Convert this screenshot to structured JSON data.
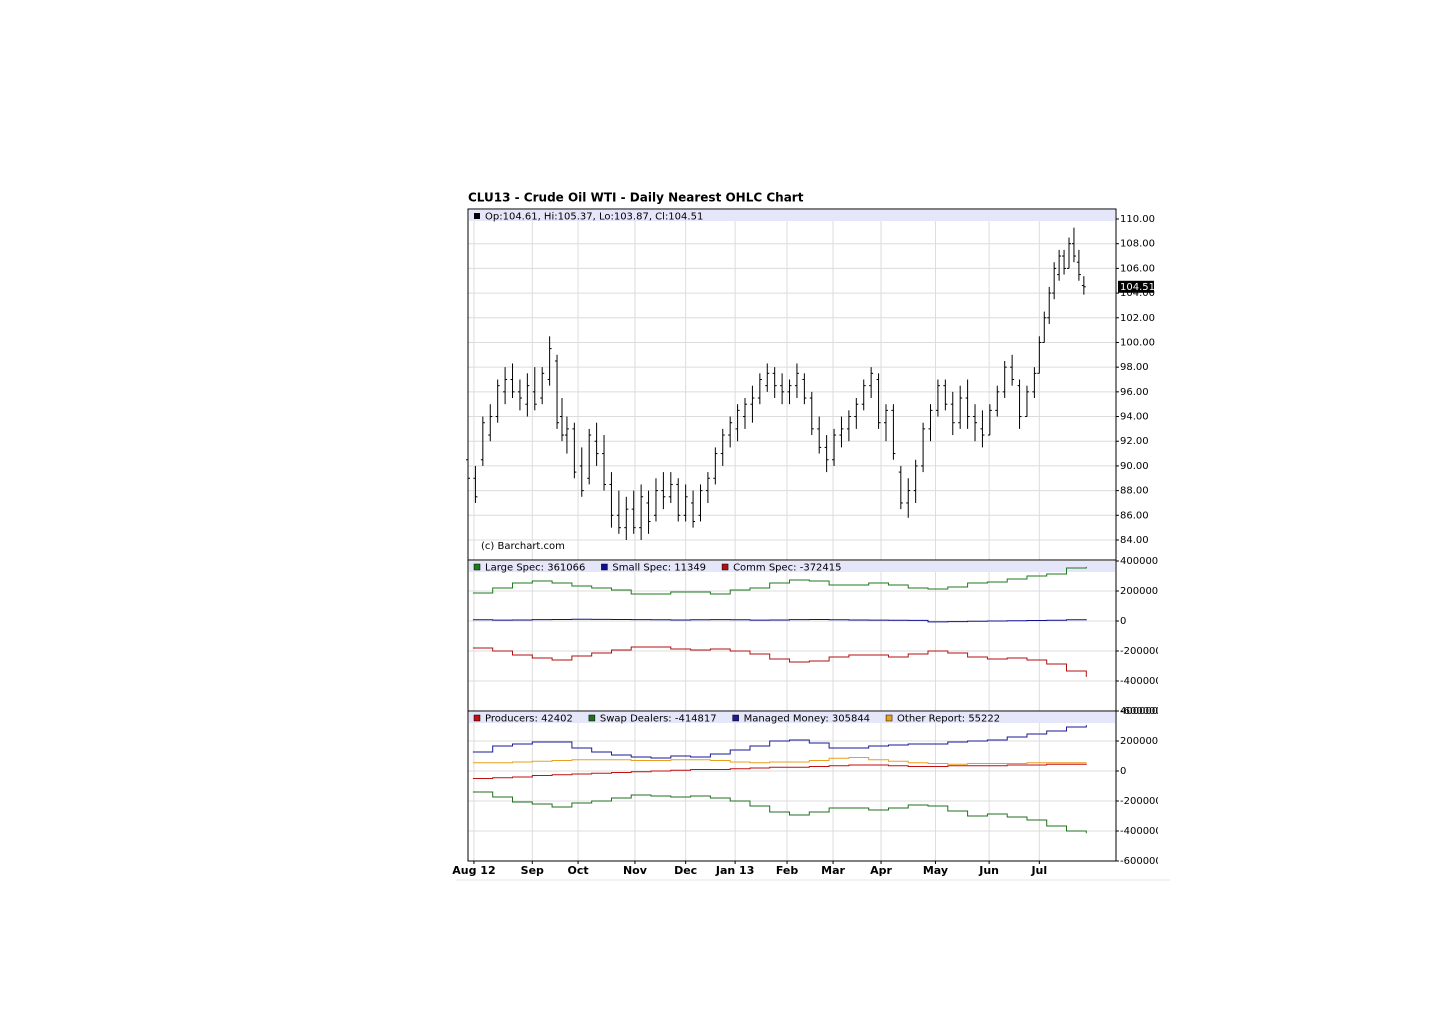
{
  "title": "CLU13 - Crude Oil WTI - Daily Nearest OHLC Chart",
  "chart_data": [
    {
      "type": "ohlc",
      "header": "Op:104.61, Hi:105.37, Lo:103.87, Cl:104.51",
      "watermark": "(c) Barchart.com",
      "color": "#000000",
      "last_value": 104.51,
      "x": [
        0,
        3,
        6,
        9,
        12,
        15,
        18,
        21,
        24,
        27,
        30,
        33,
        36,
        38,
        40,
        43,
        46,
        49,
        52,
        55,
        58,
        61,
        64,
        67,
        70,
        73,
        76,
        79,
        82,
        85,
        88,
        91,
        94,
        97,
        100,
        103,
        106,
        109,
        112,
        115,
        118,
        121,
        124,
        127,
        130,
        133,
        136,
        139,
        142,
        145,
        148,
        151,
        154,
        157,
        160,
        163,
        166,
        169,
        172,
        175,
        178,
        181,
        184,
        187,
        190,
        193,
        196,
        199,
        202,
        205,
        208,
        211,
        214,
        217,
        220,
        223,
        226,
        229,
        231,
        233,
        235,
        237,
        239,
        241,
        243,
        245,
        247,
        249
      ],
      "high": [
        91,
        90,
        94,
        95,
        97,
        98,
        98.3,
        97,
        97.5,
        98,
        98,
        100.5,
        99,
        95.5,
        94,
        93.5,
        91.5,
        93,
        93.5,
        92.5,
        89.5,
        88,
        87.5,
        88,
        88.5,
        88,
        89,
        89.5,
        89.5,
        89,
        88.5,
        88,
        88.5,
        89.5,
        91.5,
        93,
        94,
        95,
        95.5,
        96.5,
        97.5,
        98.3,
        98,
        97.5,
        97,
        98.3,
        97.5,
        96,
        94,
        92.5,
        93,
        94,
        94.5,
        95.5,
        97,
        98,
        97.5,
        95,
        95,
        90,
        89,
        90.5,
        93.5,
        95,
        97,
        97,
        96,
        96.5,
        97,
        95,
        94.5,
        95,
        96.5,
        98.5,
        99,
        97,
        96.5,
        98,
        100.5,
        102.5,
        104.5,
        106.5,
        107.5,
        107.5,
        108.5,
        109.3,
        107.5,
        105.37
      ],
      "low": [
        88,
        87,
        90,
        92,
        93.5,
        95,
        95.5,
        94.5,
        94,
        94.5,
        95,
        96.5,
        93,
        92,
        91,
        89,
        87.5,
        88.5,
        90,
        88,
        85,
        84.5,
        84,
        84.5,
        84,
        84.5,
        85.5,
        86.5,
        87,
        85.5,
        85.5,
        85,
        85.5,
        87,
        88.5,
        90,
        91.5,
        92,
        93,
        93.5,
        95,
        96,
        95.5,
        95,
        95,
        95.5,
        95,
        92.5,
        91,
        89.5,
        90,
        91.5,
        92,
        93,
        94.5,
        95.5,
        93,
        92,
        90.5,
        86.5,
        85.8,
        87,
        89.5,
        92,
        94,
        94.5,
        92.5,
        93,
        93,
        92,
        91.5,
        92.5,
        94,
        95.5,
        96.5,
        93,
        94,
        95.5,
        97.5,
        100,
        101.5,
        103.5,
        105,
        105.5,
        106,
        106.5,
        105,
        103.87
      ],
      "open": [
        90.5,
        89,
        90.5,
        92.5,
        94,
        96,
        97,
        96,
        95,
        96,
        95.5,
        97,
        98.5,
        94,
        92.5,
        93,
        90,
        89,
        92,
        91,
        88.5,
        86,
        85,
        86.5,
        85,
        87,
        86,
        88,
        87.5,
        88.5,
        86,
        87,
        86,
        88,
        89,
        91,
        92.5,
        93,
        94,
        95,
        95.5,
        96.5,
        97.5,
        96.5,
        96,
        96.5,
        97,
        95.5,
        93,
        91.5,
        90.5,
        92.5,
        93,
        94,
        95,
        96.5,
        97,
        93.5,
        94.5,
        89.5,
        87,
        88,
        90,
        93,
        94.5,
        96.5,
        95,
        93.5,
        95.5,
        94,
        93,
        92.5,
        94.5,
        96,
        98,
        96.5,
        94,
        96,
        97.5,
        100,
        102,
        104,
        105.5,
        107,
        106,
        108,
        106.5,
        104.61
      ],
      "close": [
        89,
        87.5,
        93.5,
        94,
        96.5,
        97,
        96,
        95.5,
        96.5,
        95,
        97.5,
        99.5,
        93.5,
        92.5,
        93,
        89.5,
        88,
        92.5,
        91,
        88.5,
        86,
        85,
        86.5,
        85,
        87.5,
        85.5,
        88,
        87.5,
        88.5,
        86,
        87.5,
        85.5,
        88,
        89,
        91,
        92.5,
        93.5,
        94.5,
        95,
        95.5,
        97,
        97.5,
        96.5,
        96,
        96.5,
        97.5,
        95.5,
        93,
        91.5,
        90.5,
        92.5,
        93,
        94,
        95,
        96.5,
        97.5,
        93.5,
        94.5,
        91,
        87,
        88,
        90,
        93,
        94.5,
        96.5,
        95,
        93.5,
        95.5,
        94,
        93.5,
        92.5,
        94.5,
        96,
        98,
        97,
        94,
        96,
        97.5,
        100,
        102,
        104,
        106,
        107,
        106,
        108,
        107,
        105.5,
        104.51
      ],
      "ylim": [
        82.38,
        110.81
      ],
      "yticks": [
        {
          "value": 84,
          "label": "84.00"
        },
        {
          "value": 86,
          "label": "86.00"
        },
        {
          "value": 88,
          "label": "88.00"
        },
        {
          "value": 90,
          "label": "90.00"
        },
        {
          "value": 92,
          "label": "92.00"
        },
        {
          "value": 94,
          "label": "94.00"
        },
        {
          "value": 96,
          "label": "96.00"
        },
        {
          "value": 98,
          "label": "98.00"
        },
        {
          "value": 100,
          "label": "100.00"
        },
        {
          "value": 102,
          "label": "102.00"
        },
        {
          "value": 104,
          "label": "104.00"
        },
        {
          "value": 106,
          "label": "106.00"
        },
        {
          "value": 108,
          "label": "108.00"
        },
        {
          "value": 110,
          "label": "110.00"
        }
      ],
      "grid": true
    },
    {
      "type": "step",
      "x": [
        2,
        10,
        18,
        26,
        34,
        42,
        50,
        58,
        66,
        74,
        82,
        90,
        98,
        106,
        114,
        122,
        130,
        138,
        146,
        154,
        162,
        170,
        178,
        186,
        194,
        202,
        210,
        218,
        226,
        234,
        242,
        250
      ],
      "series": [
        {
          "name": "Large Spec: 361066",
          "color": "#1e7a1e",
          "values": [
            187000,
            220000,
            253000,
            267000,
            253000,
            233000,
            220000,
            207000,
            180000,
            180000,
            193000,
            193000,
            180000,
            207000,
            220000,
            253000,
            273000,
            267000,
            240000,
            240000,
            253000,
            240000,
            220000,
            213000,
            227000,
            253000,
            260000,
            280000,
            300000,
            313000,
            353000,
            361066
          ]
        },
        {
          "name": "Small Spec: 11349",
          "color": "#101090",
          "values": [
            8000,
            6000,
            7000,
            9000,
            10000,
            12000,
            11000,
            10000,
            9000,
            8000,
            7000,
            8000,
            9000,
            8000,
            6000,
            7000,
            9000,
            10000,
            8000,
            7000,
            6000,
            5000,
            4000,
            -6000,
            -4000,
            -2000,
            0,
            2000,
            3000,
            5000,
            8000,
            11349
          ]
        },
        {
          "name": "Comm Spec: -372415",
          "color": "#b01010",
          "values": [
            -180000,
            -200000,
            -227000,
            -247000,
            -260000,
            -233000,
            -213000,
            -193000,
            -173000,
            -173000,
            -187000,
            -193000,
            -187000,
            -200000,
            -220000,
            -253000,
            -273000,
            -267000,
            -240000,
            -227000,
            -227000,
            -240000,
            -220000,
            -200000,
            -213000,
            -240000,
            -253000,
            -247000,
            -260000,
            -287000,
            -333000,
            -372415
          ]
        }
      ],
      "ylim": [
        -600000,
        400000
      ],
      "yticks": [
        400000,
        200000,
        0,
        -200000,
        -400000,
        -600000
      ],
      "grid": true
    },
    {
      "type": "step",
      "x": [
        2,
        10,
        18,
        26,
        34,
        42,
        50,
        58,
        66,
        74,
        82,
        90,
        98,
        106,
        114,
        122,
        130,
        138,
        146,
        154,
        162,
        170,
        178,
        186,
        194,
        202,
        210,
        218,
        226,
        234,
        242,
        250
      ],
      "series": [
        {
          "name": "Producers: 42402",
          "color": "#c01010",
          "values": [
            -50000,
            -45000,
            -40000,
            -30000,
            -25000,
            -20000,
            -15000,
            -10000,
            -5000,
            0,
            5000,
            10000,
            10000,
            15000,
            20000,
            25000,
            25000,
            30000,
            35000,
            40000,
            40000,
            35000,
            30000,
            30000,
            35000,
            35000,
            35000,
            40000,
            40000,
            45000,
            45000,
            42402
          ]
        },
        {
          "name": "Swap Dealers: -414817",
          "color": "#207020",
          "values": [
            -140000,
            -173000,
            -207000,
            -220000,
            -240000,
            -213000,
            -200000,
            -180000,
            -160000,
            -167000,
            -173000,
            -167000,
            -180000,
            -200000,
            -233000,
            -273000,
            -293000,
            -273000,
            -247000,
            -247000,
            -260000,
            -247000,
            -227000,
            -233000,
            -267000,
            -300000,
            -287000,
            -307000,
            -327000,
            -367000,
            -400000,
            -414817
          ]
        },
        {
          "name": "Managed Money: 305844",
          "color": "#1a1a9a",
          "values": [
            127000,
            167000,
            180000,
            193000,
            193000,
            153000,
            127000,
            107000,
            93000,
            87000,
            100000,
            93000,
            113000,
            140000,
            167000,
            200000,
            207000,
            187000,
            153000,
            153000,
            167000,
            173000,
            180000,
            180000,
            193000,
            200000,
            207000,
            227000,
            247000,
            267000,
            293000,
            305844
          ]
        },
        {
          "name": "Other Report: 55222",
          "color": "#e8a020",
          "values": [
            55000,
            55000,
            60000,
            65000,
            70000,
            75000,
            75000,
            75000,
            70000,
            70000,
            75000,
            75000,
            70000,
            60000,
            55000,
            60000,
            60000,
            70000,
            85000,
            90000,
            75000,
            65000,
            55000,
            50000,
            45000,
            50000,
            50000,
            50000,
            55000,
            55000,
            55000,
            55222
          ]
        }
      ],
      "ylim": [
        -600000,
        400000
      ],
      "yticks": [
        400000,
        200000,
        0,
        -200000,
        -400000,
        -600000
      ],
      "grid": true,
      "xlim": [
        0,
        262
      ],
      "xticks": [
        {
          "value": 2.4,
          "label": "Aug 12"
        },
        {
          "value": 26,
          "label": "Sep"
        },
        {
          "value": 44.5,
          "label": "Oct"
        },
        {
          "value": 67.5,
          "label": "Nov"
        },
        {
          "value": 88,
          "label": "Dec"
        },
        {
          "value": 108,
          "label": "Jan 13"
        },
        {
          "value": 129,
          "label": "Feb"
        },
        {
          "value": 147.6,
          "label": "Mar"
        },
        {
          "value": 167,
          "label": "Apr"
        },
        {
          "value": 189,
          "label": "May"
        },
        {
          "value": 210.7,
          "label": "Jun"
        },
        {
          "value": 231,
          "label": "Jul"
        }
      ]
    }
  ]
}
